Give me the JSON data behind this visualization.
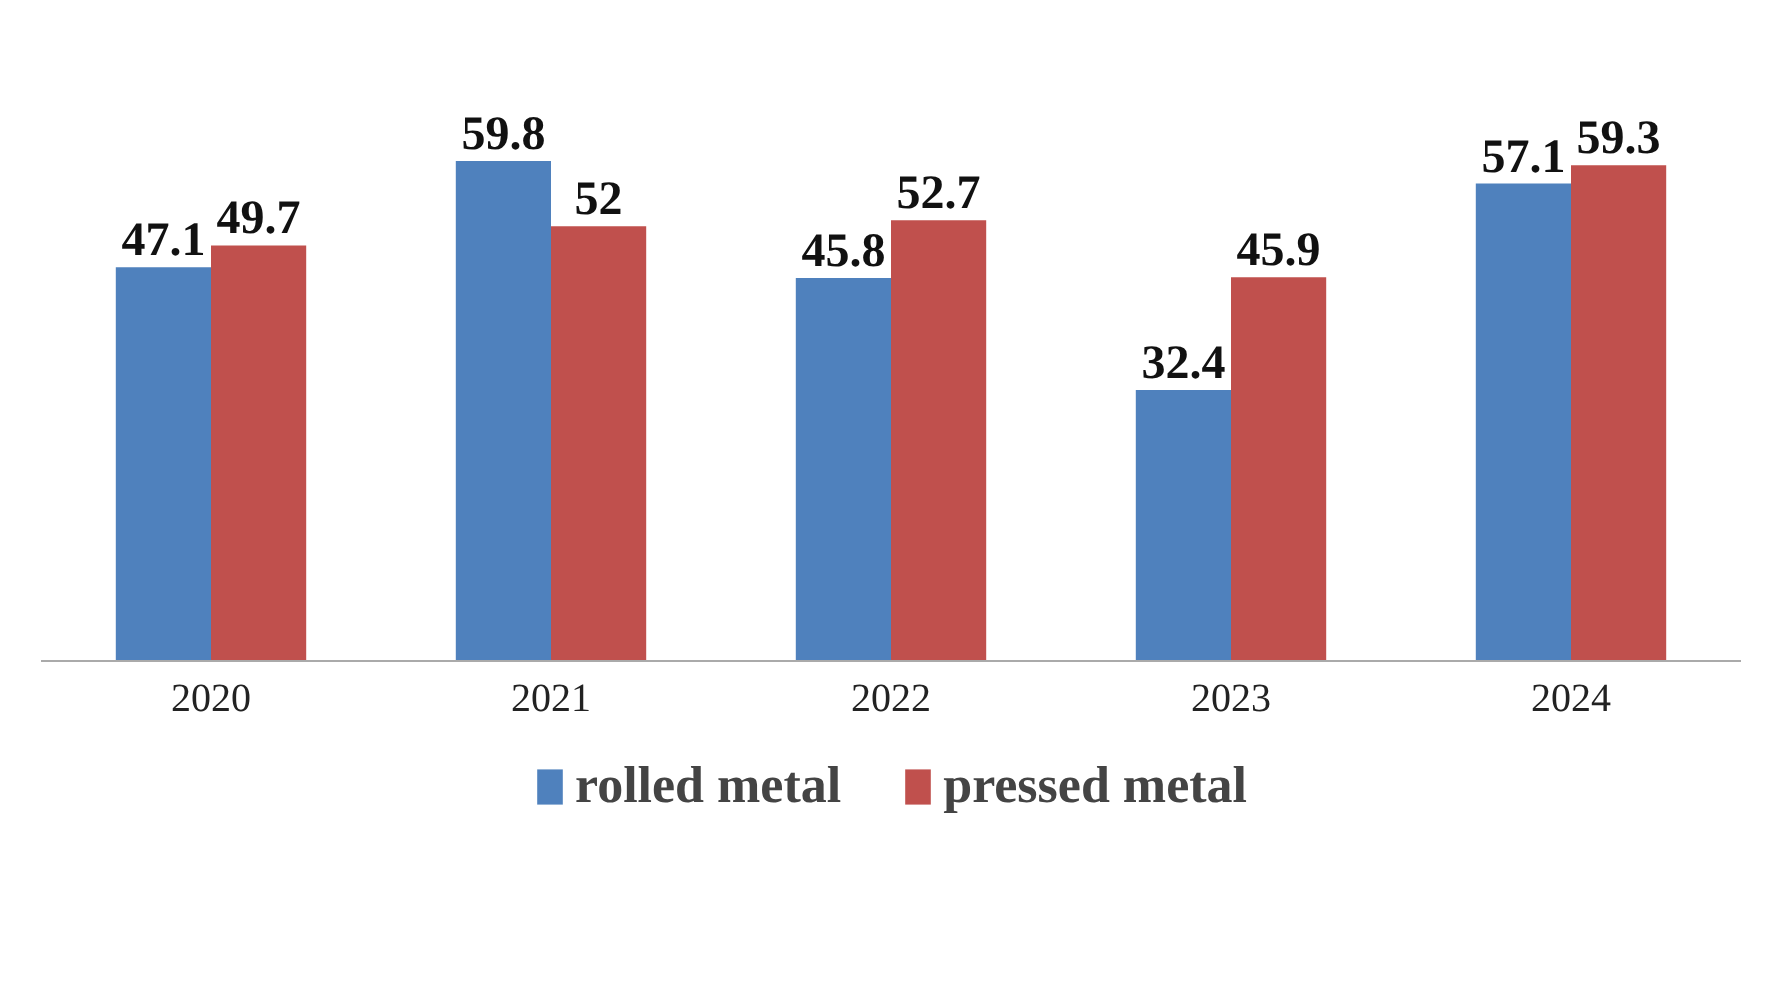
{
  "chart_data": {
    "type": "bar",
    "categories": [
      "2020",
      "2021",
      "2022",
      "2023",
      "2024"
    ],
    "series": [
      {
        "name": "rolled metal",
        "color": "#4f81bd",
        "values": [
          47.1,
          59.8,
          45.8,
          32.4,
          57.1
        ]
      },
      {
        "name": "pressed metal",
        "color": "#c0504d",
        "values": [
          49.7,
          52,
          52.7,
          45.9,
          59.3
        ]
      }
    ],
    "data_labels": true,
    "legend": "bottom"
  }
}
